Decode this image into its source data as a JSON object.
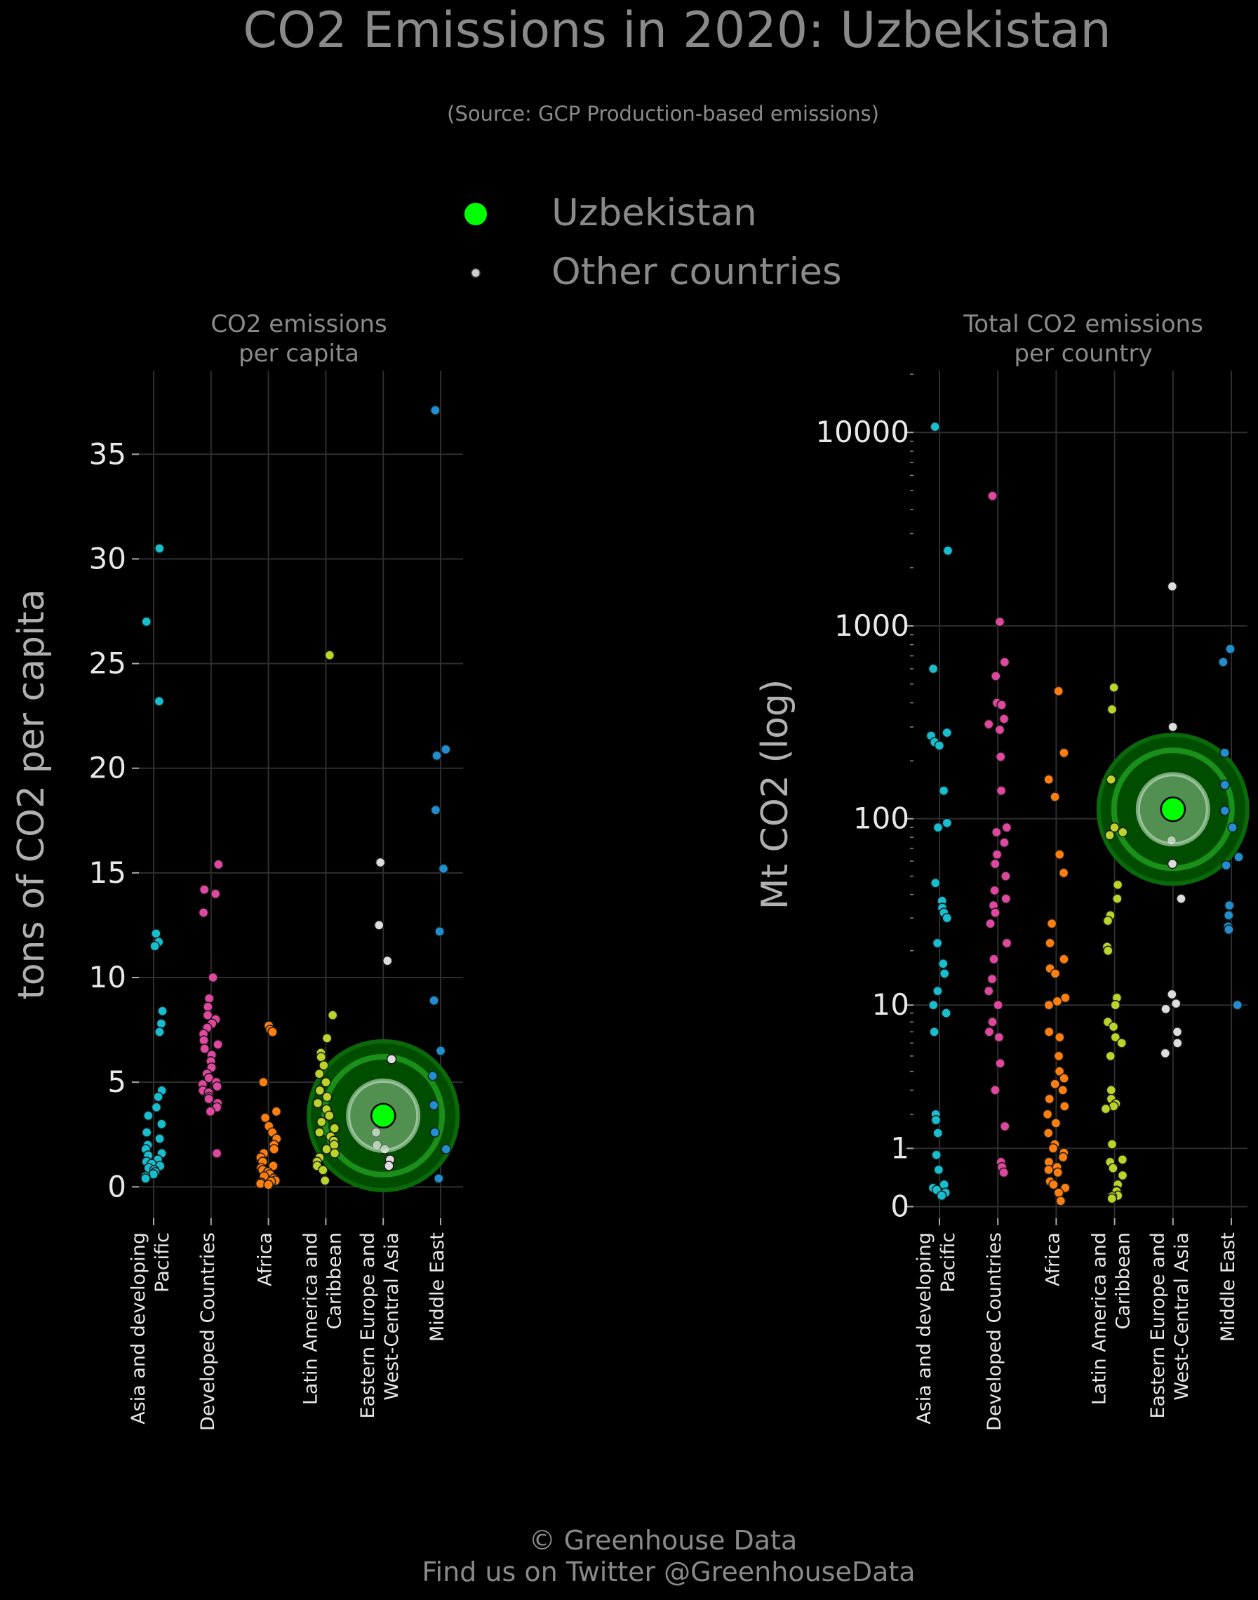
{
  "title": "CO2 Emissions in 2020: Uzbekistan",
  "subtitle": "(Source: GCP Production-based emissions)",
  "legend": {
    "placement": "top-center",
    "items": [
      {
        "label": "Uzbekistan",
        "color": "#00ff00"
      },
      {
        "label": "Other countries",
        "color": "#d0d0d0"
      }
    ]
  },
  "footer": {
    "line1": "© Greenhouse Data",
    "line2": "Find us on Twitter @GreenhouseData"
  },
  "colors": {
    "background": "#000000",
    "text": "#8a8a8a",
    "axis_text": "#e8e8e8",
    "grid": "#2e2e2e",
    "highlight": "#00ff00"
  },
  "chart_data": [
    {
      "type": "scatter",
      "title_lines": [
        "CO2 emissions",
        "per capita"
      ],
      "ylabel": "tons of CO2 per capita",
      "yscale": "linear",
      "ylim": [
        -1.5,
        39
      ],
      "yticks": [
        0,
        5,
        10,
        15,
        20,
        25,
        30,
        35
      ],
      "ytick_labels": [
        "0",
        "5",
        "10",
        "15",
        "20",
        "25",
        "30",
        "35"
      ],
      "grid": true,
      "categories": [
        {
          "name": "Asia and developing Pacific",
          "label_lines": [
            "Asia and developing",
            "Pacific"
          ],
          "color": "#17becf"
        },
        {
          "name": "Developed Countries",
          "label_lines": [
            "Developed Countries"
          ],
          "color": "#e0479e"
        },
        {
          "name": "Africa",
          "label_lines": [
            "Africa"
          ],
          "color": "#ff7f0e"
        },
        {
          "name": "Latin America and Caribbean",
          "label_lines": [
            "Latin America and",
            "Caribbean"
          ],
          "color": "#bcd42a"
        },
        {
          "name": "Eastern Europe and West-Central Asia",
          "label_lines": [
            "Eastern Europe and",
            "West-Central Asia"
          ],
          "color": "#dddddd"
        },
        {
          "name": "Middle East",
          "label_lines": [
            "Middle East"
          ],
          "color": "#1f8fcf"
        }
      ],
      "points": [
        [
          30.5,
          27.0,
          23.2,
          12.1,
          11.7,
          11.5,
          8.4,
          7.8,
          7.4,
          4.6,
          4.3,
          3.8,
          3.4,
          3.0,
          2.6,
          2.3,
          2.0,
          1.8,
          1.6,
          1.5,
          1.3,
          1.2,
          1.1,
          1.0,
          0.9,
          0.8,
          0.7,
          0.6,
          0.5,
          0.4
        ],
        [
          15.4,
          14.2,
          14.0,
          13.1,
          10.0,
          9.0,
          8.6,
          8.2,
          8.0,
          7.8,
          7.6,
          7.3,
          7.0,
          6.8,
          6.6,
          6.3,
          6.0,
          5.7,
          5.4,
          5.2,
          5.0,
          4.9,
          4.8,
          4.6,
          4.5,
          4.3,
          4.2,
          4.0,
          3.8,
          3.6,
          1.6
        ],
        [
          7.7,
          7.5,
          7.4,
          5.0,
          3.6,
          3.3,
          2.9,
          2.6,
          2.3,
          2.0,
          1.8,
          1.6,
          1.4,
          1.2,
          1.0,
          0.9,
          0.8,
          0.7,
          0.6,
          0.5,
          0.4,
          0.3,
          0.25,
          0.2,
          0.15,
          0.1
        ],
        [
          25.4,
          8.2,
          7.1,
          6.4,
          6.2,
          5.8,
          5.4,
          5.0,
          4.6,
          4.3,
          4.0,
          3.7,
          3.4,
          3.1,
          2.8,
          2.6,
          2.4,
          2.2,
          2.0,
          1.8,
          1.6,
          1.4,
          1.2,
          1.0,
          0.8,
          0.3
        ],
        [
          15.5,
          12.5,
          10.8,
          6.1,
          2.6,
          2.0,
          1.8,
          1.3,
          1.0
        ],
        [
          37.1,
          20.9,
          20.6,
          18.0,
          15.2,
          12.2,
          8.9,
          6.5,
          5.3,
          3.9,
          2.6,
          1.8,
          0.4
        ]
      ],
      "highlight": {
        "name": "Uzbekistan",
        "category": "Eastern Europe and West-Central Asia",
        "value": 3.4
      }
    },
    {
      "type": "scatter",
      "title_lines": [
        "Total CO2 emissions",
        "per country"
      ],
      "ylabel": "Mt CO2 (log)",
      "yscale": "log1p",
      "ylim": [
        -0.06,
        4.32
      ],
      "yticks": [
        0,
        1,
        10,
        100,
        1000,
        10000
      ],
      "ytick_labels": [
        "0",
        "1",
        "10",
        "100",
        "1000",
        "10000"
      ],
      "grid": true,
      "categories": [
        {
          "name": "Asia and developing Pacific",
          "label_lines": [
            "Asia and developing",
            "Pacific"
          ],
          "color": "#17becf"
        },
        {
          "name": "Developed Countries",
          "label_lines": [
            "Developed Countries"
          ],
          "color": "#e0479e"
        },
        {
          "name": "Africa",
          "label_lines": [
            "Africa"
          ],
          "color": "#ff7f0e"
        },
        {
          "name": "Latin America and Caribbean",
          "label_lines": [
            "Latin America and",
            "Caribbean"
          ],
          "color": "#bcd42a"
        },
        {
          "name": "Eastern Europe and West-Central Asia",
          "label_lines": [
            "Eastern Europe and",
            "West-Central Asia"
          ],
          "color": "#dddddd"
        },
        {
          "name": "Middle East",
          "label_lines": [
            "Middle East"
          ],
          "color": "#1f8fcf"
        }
      ],
      "points": [
        [
          10700,
          2450,
          600,
          280,
          270,
          250,
          240,
          140,
          95,
          90,
          46,
          37,
          34,
          32,
          30,
          22,
          17,
          15,
          12,
          10,
          9,
          7,
          2,
          1.8,
          1.4,
          0.85,
          0.55,
          0.3,
          0.25,
          0.22,
          0.18,
          0.14
        ],
        [
          4700,
          1050,
          650,
          550,
          400,
          390,
          330,
          310,
          290,
          210,
          140,
          90,
          85,
          75,
          65,
          58,
          50,
          42,
          38,
          35,
          32,
          28,
          22,
          18,
          14,
          12,
          10,
          8,
          7,
          6.5,
          4.5,
          3,
          1.6,
          0.7,
          0.6,
          0.5
        ],
        [
          460,
          220,
          160,
          130,
          65,
          52,
          28,
          22,
          18,
          16,
          15,
          11,
          10.5,
          10,
          7,
          6.5,
          5,
          4,
          3.6,
          3.3,
          3,
          2.6,
          2.3,
          2,
          1.7,
          1.4,
          1.1,
          1.0,
          0.9,
          0.8,
          0.7,
          0.6,
          0.55,
          0.5,
          0.35,
          0.3,
          0.25,
          0.18,
          0.07
        ],
        [
          480,
          370,
          160,
          90,
          85,
          82,
          45,
          38,
          31,
          29,
          21,
          20,
          11,
          10,
          8,
          7.5,
          6.5,
          6,
          5,
          3,
          2.6,
          2.4,
          2.3,
          2.2,
          1.1,
          0.75,
          0.7,
          0.58,
          0.45,
          0.3,
          0.21,
          0.2,
          0.14,
          0.13,
          0.1
        ],
        [
          1600,
          300,
          77,
          58,
          38,
          11.5,
          10.2,
          9.5,
          7,
          6,
          5.2
        ],
        [
          760,
          650,
          220,
          150,
          110,
          90,
          63,
          57,
          35,
          31,
          27,
          26,
          10
        ]
      ],
      "highlight": {
        "name": "Uzbekistan",
        "category": "Eastern Europe and West-Central Asia",
        "value": 112
      }
    }
  ]
}
